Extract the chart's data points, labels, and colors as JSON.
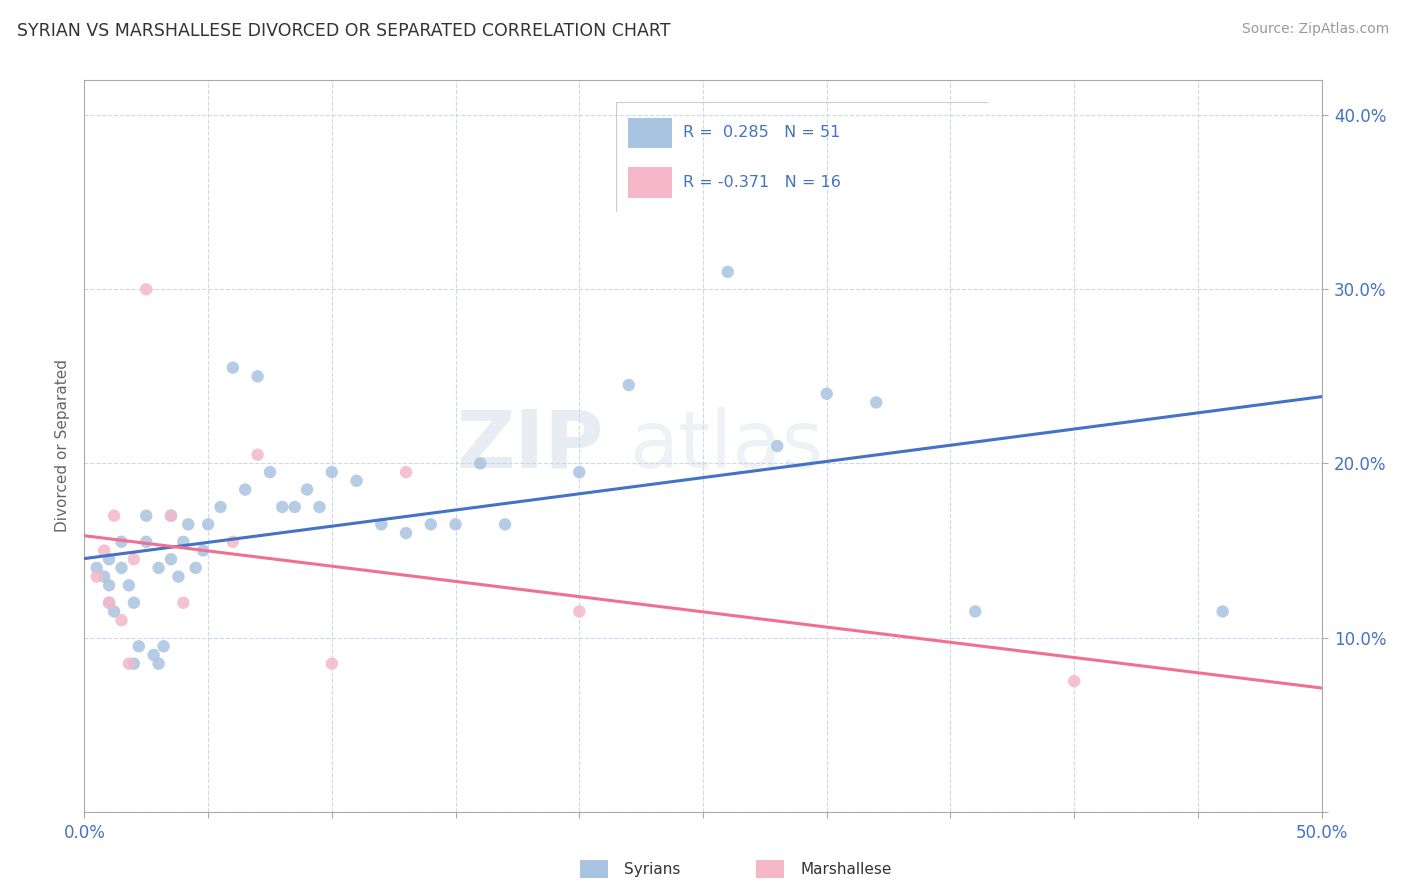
{
  "title": "SYRIAN VS MARSHALLESE DIVORCED OR SEPARATED CORRELATION CHART",
  "source": "Source: ZipAtlas.com",
  "xlabel_syrians": "Syrians",
  "xlabel_marshallese": "Marshallese",
  "ylabel": "Divorced or Separated",
  "xmin": 0.0,
  "xmax": 0.5,
  "ymin": 0.0,
  "ymax": 0.42,
  "x_ticks": [
    0.0,
    0.05,
    0.1,
    0.15,
    0.2,
    0.25,
    0.3,
    0.35,
    0.4,
    0.45,
    0.5
  ],
  "y_ticks": [
    0.0,
    0.1,
    0.2,
    0.3,
    0.4
  ],
  "syrian_R": 0.285,
  "syrian_N": 51,
  "marshallese_R": -0.371,
  "marshallese_N": 16,
  "syrian_color": "#a8c4e0",
  "marshallese_color": "#f4b8c8",
  "syrian_line_color": "#4472c4",
  "marshallese_line_color": "#f07090",
  "legend_text_color": "#4472c4",
  "watermark_zip": "ZIP",
  "watermark_atlas": "atlas",
  "syrian_x": [
    0.005,
    0.008,
    0.01,
    0.01,
    0.01,
    0.012,
    0.015,
    0.015,
    0.018,
    0.02,
    0.02,
    0.022,
    0.025,
    0.025,
    0.028,
    0.03,
    0.03,
    0.032,
    0.035,
    0.035,
    0.038,
    0.04,
    0.042,
    0.045,
    0.048,
    0.05,
    0.055,
    0.06,
    0.065,
    0.07,
    0.075,
    0.08,
    0.085,
    0.09,
    0.095,
    0.1,
    0.11,
    0.12,
    0.13,
    0.14,
    0.15,
    0.16,
    0.17,
    0.2,
    0.22,
    0.26,
    0.28,
    0.3,
    0.32,
    0.36,
    0.46
  ],
  "syrian_y": [
    0.14,
    0.135,
    0.145,
    0.13,
    0.12,
    0.115,
    0.155,
    0.14,
    0.13,
    0.12,
    0.085,
    0.095,
    0.17,
    0.155,
    0.09,
    0.14,
    0.085,
    0.095,
    0.17,
    0.145,
    0.135,
    0.155,
    0.165,
    0.14,
    0.15,
    0.165,
    0.175,
    0.255,
    0.185,
    0.25,
    0.195,
    0.175,
    0.175,
    0.185,
    0.175,
    0.195,
    0.19,
    0.165,
    0.16,
    0.165,
    0.165,
    0.2,
    0.165,
    0.195,
    0.245,
    0.31,
    0.21,
    0.24,
    0.235,
    0.115,
    0.115
  ],
  "marshallese_x": [
    0.005,
    0.008,
    0.01,
    0.012,
    0.015,
    0.018,
    0.02,
    0.025,
    0.035,
    0.04,
    0.06,
    0.07,
    0.1,
    0.13,
    0.2,
    0.4
  ],
  "marshallese_y": [
    0.135,
    0.15,
    0.12,
    0.17,
    0.11,
    0.085,
    0.145,
    0.3,
    0.17,
    0.12,
    0.155,
    0.205,
    0.085,
    0.195,
    0.115,
    0.075
  ]
}
